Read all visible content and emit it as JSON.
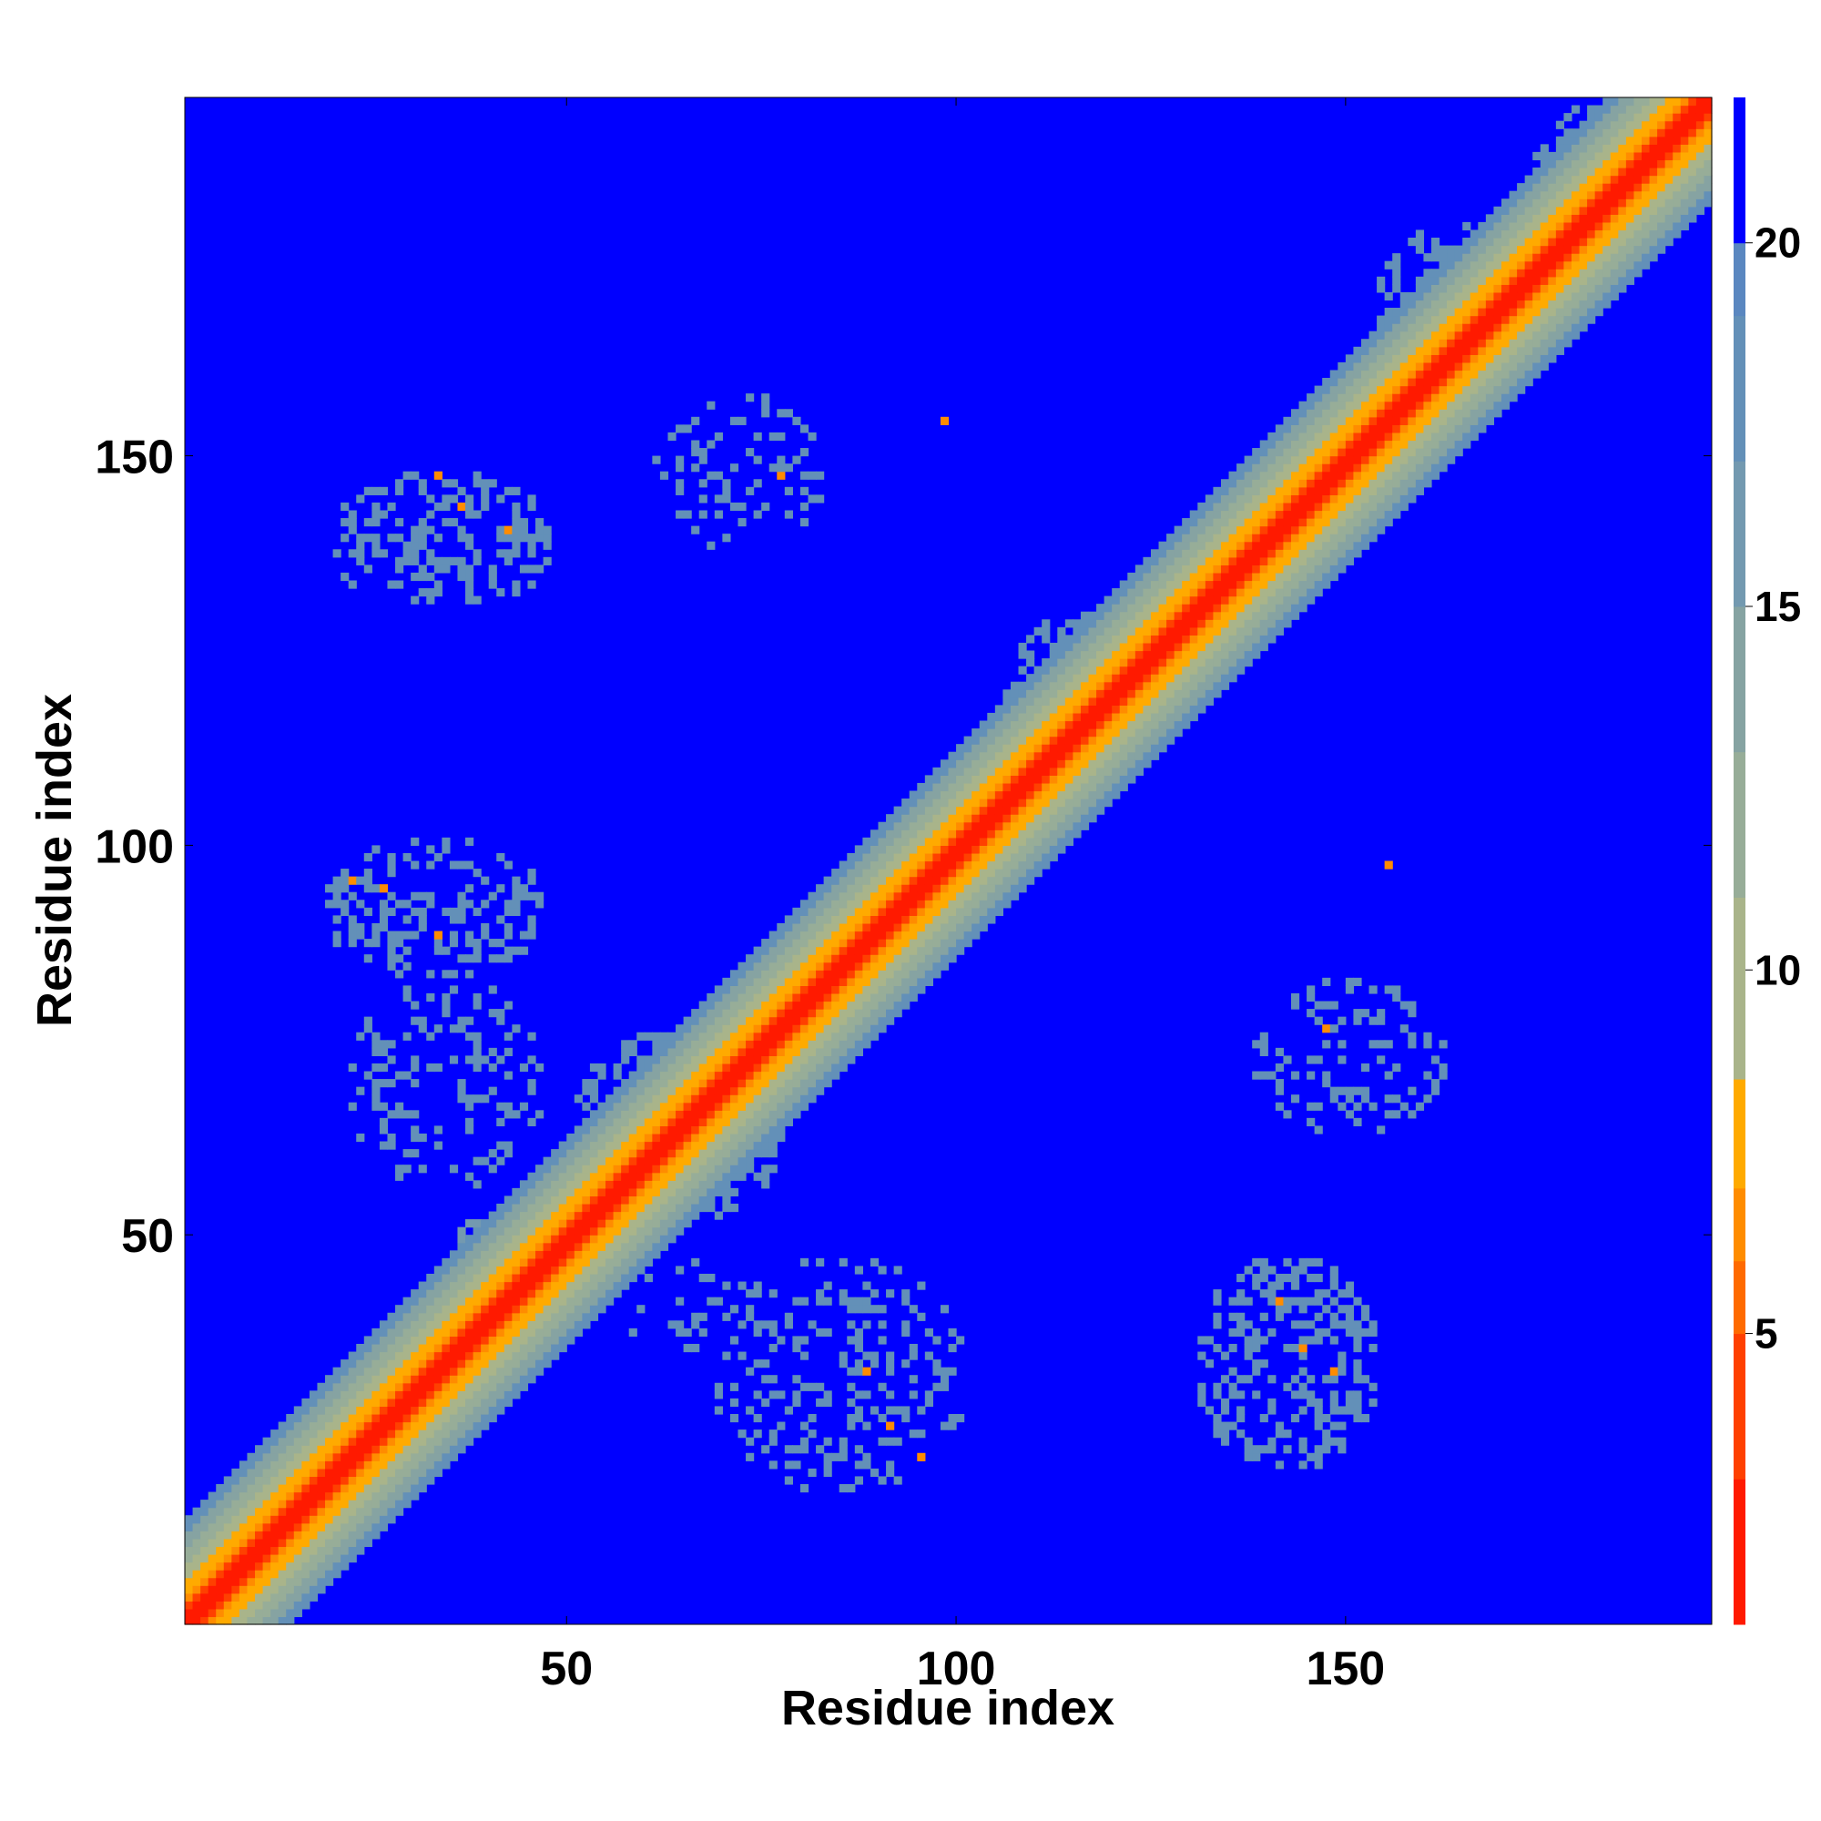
{
  "chart_data": {
    "type": "heatmap",
    "title": "",
    "xlabel": "Residue index",
    "ylabel": "Residue index",
    "xlim": [
      1,
      196
    ],
    "ylim": [
      1,
      196
    ],
    "x_ticks": [
      50,
      100,
      150
    ],
    "y_ticks": [
      50,
      100,
      150
    ],
    "colorbar": {
      "range": [
        1,
        22
      ],
      "ticks": [
        5,
        10,
        15,
        20
      ],
      "bands": [
        {
          "from": 1,
          "to": 3,
          "color": "#ff1a00"
        },
        {
          "from": 3,
          "to": 5,
          "color": "#ff4000"
        },
        {
          "from": 5,
          "to": 6,
          "color": "#ff6a00"
        },
        {
          "from": 6,
          "to": 7,
          "color": "#ff8c00"
        },
        {
          "from": 7,
          "to": 8.5,
          "color": "#ffaa00"
        },
        {
          "from": 8.5,
          "to": 11,
          "color": "#a9b48a"
        },
        {
          "from": 11,
          "to": 13,
          "color": "#97ad98"
        },
        {
          "from": 13,
          "to": 15,
          "color": "#86a3a2"
        },
        {
          "from": 15,
          "to": 17,
          "color": "#7399b0"
        },
        {
          "from": 17,
          "to": 19,
          "color": "#6390b8"
        },
        {
          "from": 19,
          "to": 20,
          "color": "#5a87c0"
        },
        {
          "from": 20,
          "to": 22,
          "color": "#0000ff"
        }
      ]
    },
    "diagonal_profile": [
      {
        "max_offset": 1,
        "value": 2
      },
      {
        "max_offset": 2,
        "value": 4
      },
      {
        "max_offset": 3,
        "value": 6
      },
      {
        "max_offset": 5,
        "value": 7.5
      },
      {
        "max_offset": 7,
        "value": 10
      },
      {
        "max_offset": 9,
        "value": 12.5
      },
      {
        "max_offset": 11,
        "value": 14.5
      },
      {
        "max_offset": 13,
        "value": 17
      }
    ],
    "background_value": 21,
    "contact_clusters": [
      {
        "x": [
          20,
          47
        ],
        "y": [
          131,
          148
        ],
        "value": 17,
        "density": 0.38
      },
      {
        "x": [
          61,
          82
        ],
        "y": [
          139,
          158
        ],
        "value": 17,
        "density": 0.22
      },
      {
        "x": [
          19,
          46
        ],
        "y": [
          84,
          101
        ],
        "value": 17,
        "density": 0.35
      },
      {
        "x": [
          22,
          46
        ],
        "y": [
          57,
          83
        ],
        "value": 17,
        "density": 0.2
      },
      {
        "x": [
          51,
          77
        ],
        "y": [
          53,
          76
        ],
        "value": 17,
        "density": 0.45
      },
      {
        "x": [
          35,
          48
        ],
        "y": [
          43,
          53
        ],
        "value": 16,
        "density": 0.5
      },
      {
        "x": [
          56,
          76
        ],
        "y": [
          36,
          47
        ],
        "value": 17,
        "density": 0.2
      },
      {
        "x": [
          69,
          100
        ],
        "y": [
          18,
          47
        ],
        "value": 17,
        "density": 0.25
      },
      {
        "x": [
          131,
          153
        ],
        "y": [
          21,
          47
        ],
        "value": 17,
        "density": 0.38
      },
      {
        "x": [
          138,
          162
        ],
        "y": [
          64,
          83
        ],
        "value": 17,
        "density": 0.22
      },
      {
        "x": [
          106,
          126
        ],
        "y": [
          112,
          130
        ],
        "value": 17,
        "density": 0.35
      },
      {
        "x": [
          154,
          172
        ],
        "y": [
          158,
          180
        ],
        "value": 17,
        "density": 0.35
      },
      {
        "x": [
          174,
          196
        ],
        "y": [
          181,
          196
        ],
        "value": 17,
        "density": 0.4
      }
    ],
    "contact_points": [
      {
        "x": 98,
        "y": 155,
        "value": 6
      },
      {
        "x": 155,
        "y": 98,
        "value": 6
      },
      {
        "x": 33,
        "y": 148,
        "value": 6
      },
      {
        "x": 36,
        "y": 144,
        "value": 6
      },
      {
        "x": 42,
        "y": 141,
        "value": 6
      },
      {
        "x": 77,
        "y": 148,
        "value": 6
      },
      {
        "x": 22,
        "y": 96,
        "value": 6
      },
      {
        "x": 26,
        "y": 95,
        "value": 6
      },
      {
        "x": 33,
        "y": 89,
        "value": 6
      },
      {
        "x": 88,
        "y": 33,
        "value": 6
      },
      {
        "x": 91,
        "y": 26,
        "value": 6
      },
      {
        "x": 95,
        "y": 22,
        "value": 6
      },
      {
        "x": 141,
        "y": 42,
        "value": 6
      },
      {
        "x": 144,
        "y": 36,
        "value": 6
      },
      {
        "x": 148,
        "y": 33,
        "value": 6
      },
      {
        "x": 147,
        "y": 77,
        "value": 6
      }
    ]
  }
}
